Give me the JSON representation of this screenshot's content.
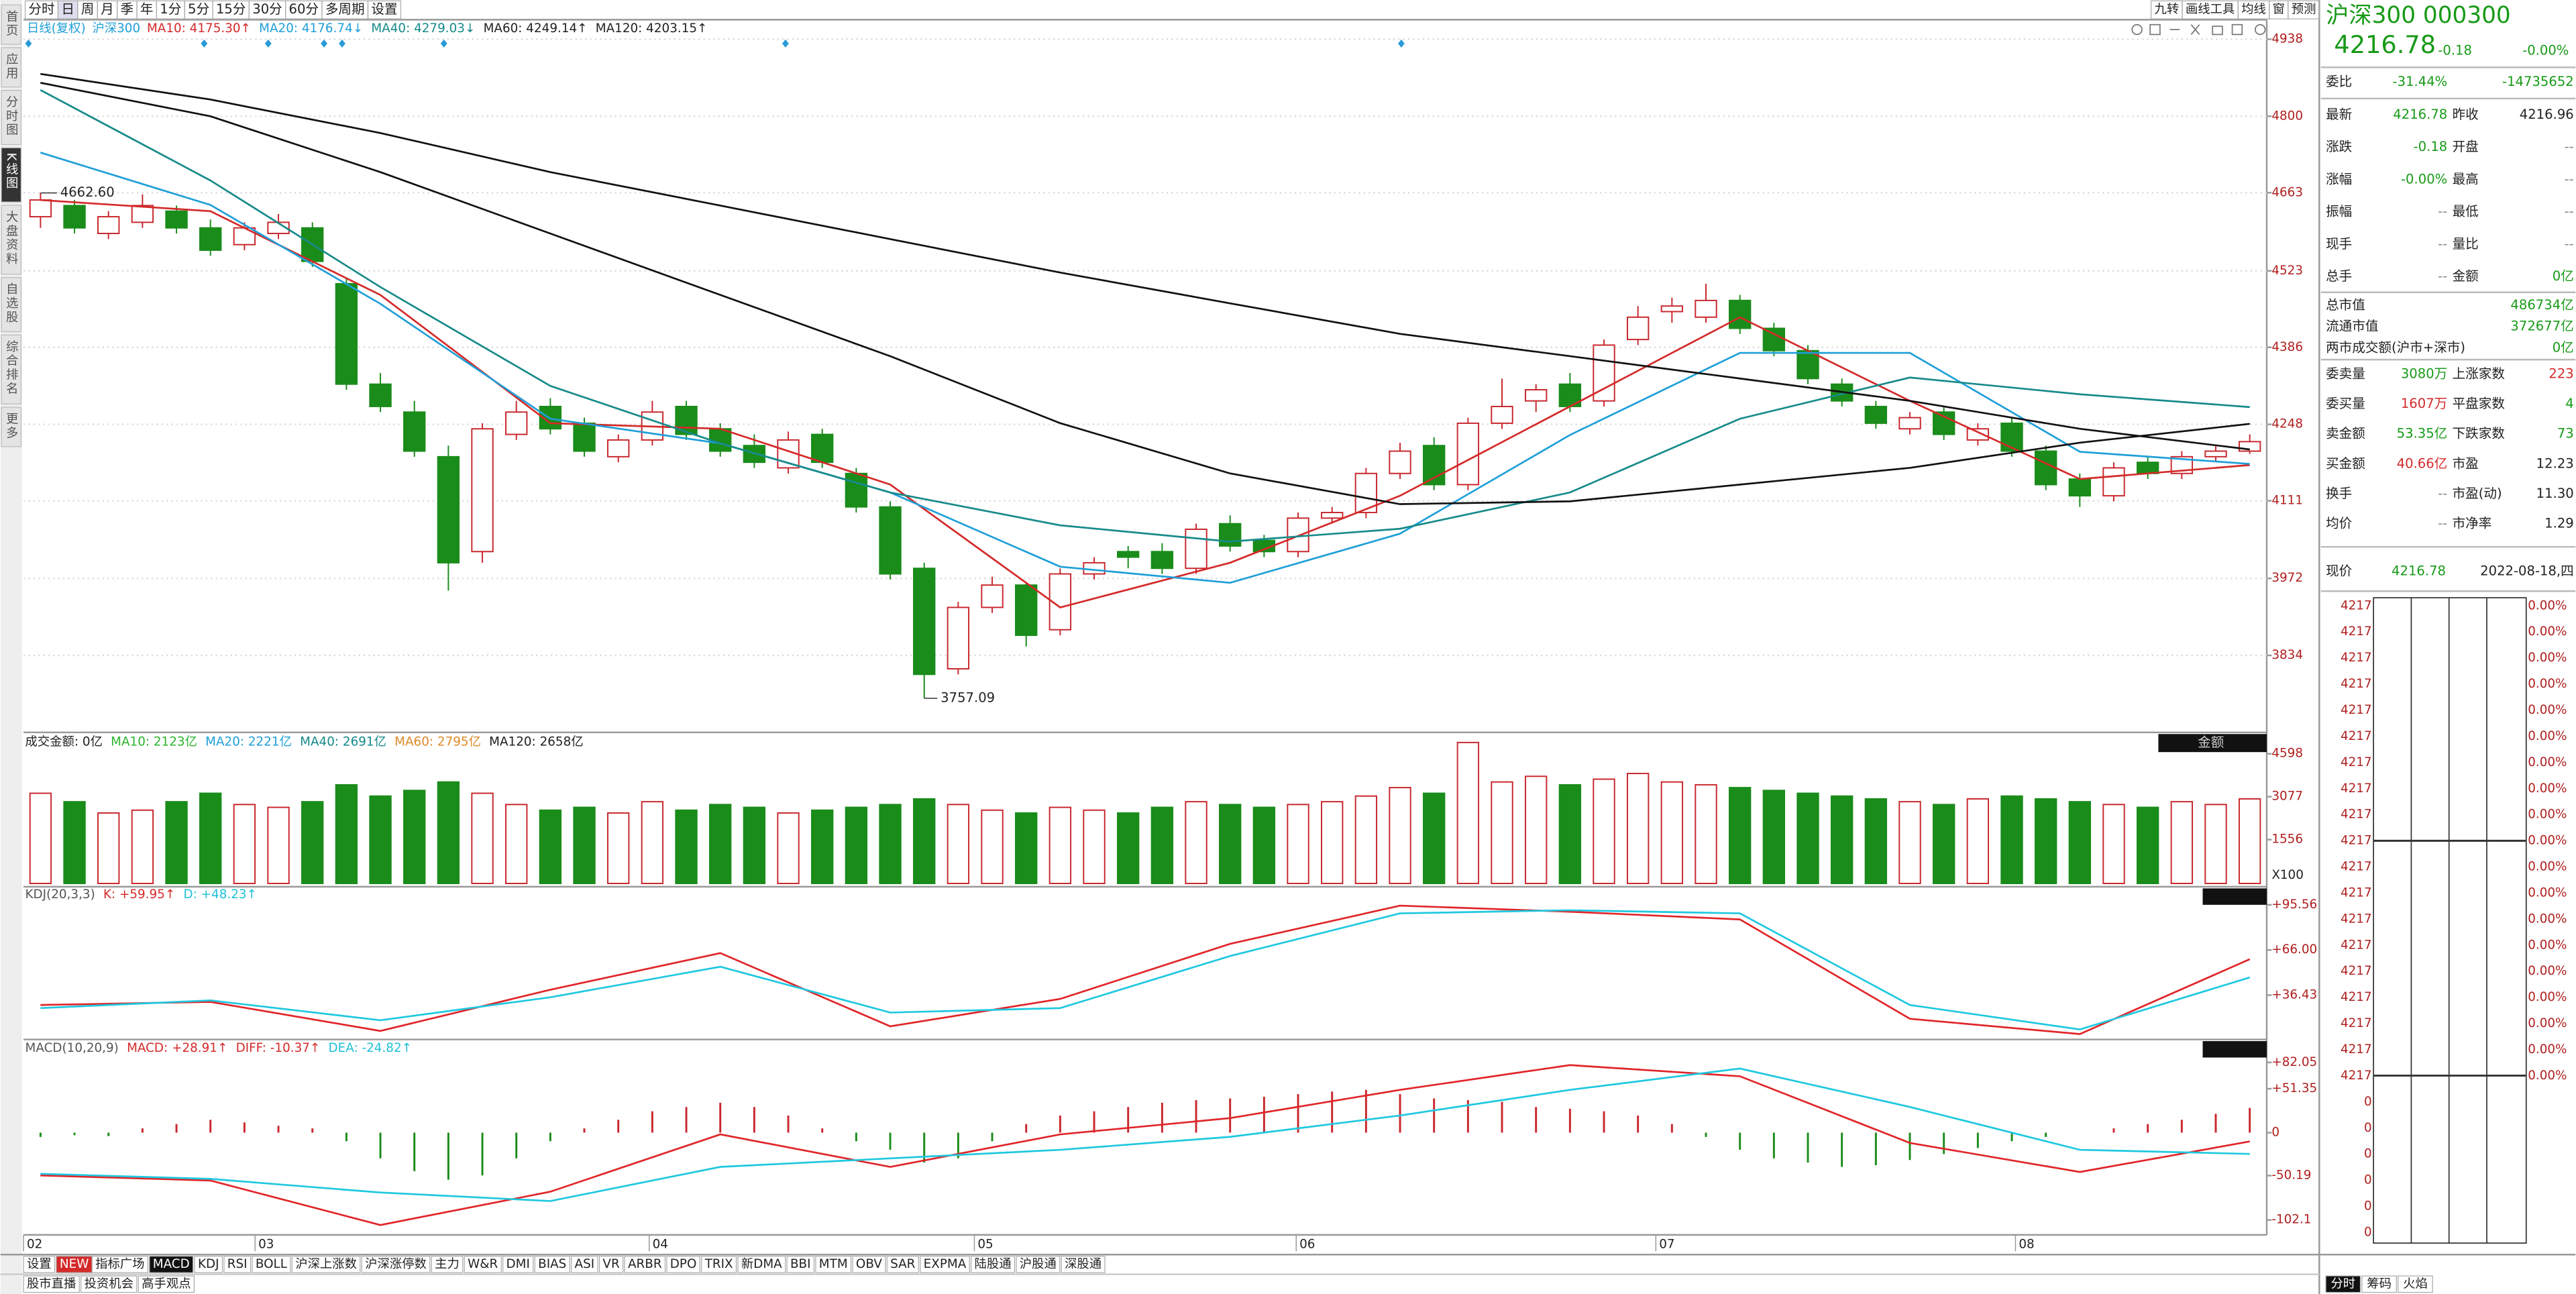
{
  "toolbar": {
    "left": [
      "分时",
      "日",
      "周",
      "月",
      "季",
      "年",
      "1分",
      "5分",
      "15分",
      "30分",
      "60分",
      "多周期",
      "设置"
    ],
    "right": [
      "九转",
      "画线工具",
      "均线",
      "窗",
      "预测"
    ]
  },
  "sidebar": [
    "首页",
    "应用",
    "分时图",
    "K线图",
    "大盘资料",
    "自选股",
    "综合排名",
    "更多"
  ],
  "kline": {
    "mode": "日线(复权)",
    "name": "沪深300",
    "legend": [
      {
        "text": "MA10: 4175.30↑",
        "color": "#d42a2a"
      },
      {
        "text": "MA20: 4176.74↓",
        "color": "#1f9fd8"
      },
      {
        "text": "MA40: 4279.03↓",
        "color": "#178a8a"
      },
      {
        "text": "MA60: 4249.14↑",
        "color": "#222222"
      },
      {
        "text": "MA120: 4203.15↑",
        "color": "#222222"
      }
    ],
    "ylim": [
      3699,
      4973
    ],
    "yticks": [
      4938,
      4800,
      4663,
      4523,
      4386,
      4248,
      4111,
      3972,
      3834
    ],
    "grid": true,
    "up_color": "#c8272d",
    "down_color": "#1a8c1a",
    "open": [
      4620,
      4640,
      4590,
      4610,
      4630,
      4600,
      4570,
      4590,
      4600,
      4500,
      4320,
      4270,
      4190,
      4020,
      4230,
      4280,
      4250,
      4190,
      4220,
      4280,
      4240,
      4210,
      4170,
      4230,
      4160,
      4100,
      3990,
      3810,
      3920,
      3960,
      3880,
      3980,
      4020,
      4020,
      3990,
      4070,
      4040,
      4020,
      4080,
      4090,
      4160,
      4210,
      4140,
      4250,
      4290,
      4320,
      4290,
      4400,
      4450,
      4440,
      4470,
      4420,
      4380,
      4320,
      4280,
      4240,
      4270,
      4220,
      4250,
      4200,
      4150,
      4120,
      4180,
      4160,
      4190,
      4200
    ],
    "high": [
      4662.6,
      4650,
      4630,
      4660,
      4640,
      4615,
      4610,
      4625,
      4610,
      4510,
      4340,
      4290,
      4210,
      4250,
      4290,
      4295,
      4260,
      4230,
      4290,
      4290,
      4250,
      4230,
      4235,
      4240,
      4170,
      4110,
      4000,
      3930,
      3975,
      3965,
      3990,
      4010,
      4030,
      4035,
      4070,
      4085,
      4050,
      4090,
      4100,
      4170,
      4215,
      4225,
      4260,
      4330,
      4320,
      4340,
      4400,
      4460,
      4475,
      4500,
      4480,
      4430,
      4390,
      4330,
      4290,
      4270,
      4280,
      4250,
      4260,
      4210,
      4160,
      4180,
      4190,
      4200,
      4210,
      4230
    ],
    "low": [
      4600,
      4590,
      4580,
      4600,
      4590,
      4550,
      4560,
      4580,
      4530,
      4310,
      4270,
      4190,
      3950,
      4000,
      4220,
      4230,
      4190,
      4180,
      4210,
      4220,
      4190,
      4170,
      4160,
      4170,
      4090,
      3970,
      3757.09,
      3800,
      3910,
      3850,
      3870,
      3970,
      3990,
      3980,
      3980,
      4020,
      4010,
      4010,
      4070,
      4080,
      4150,
      4130,
      4130,
      4240,
      4270,
      4270,
      4280,
      4390,
      4430,
      4430,
      4410,
      4370,
      4320,
      4280,
      4240,
      4230,
      4220,
      4210,
      4190,
      4130,
      4100,
      4110,
      4150,
      4150,
      4180,
      4195
    ],
    "close": [
      4650,
      4600,
      4620,
      4640,
      4600,
      4560,
      4600,
      4610,
      4540,
      4320,
      4280,
      4200,
      4000,
      4240,
      4270,
      4240,
      4200,
      4220,
      4270,
      4230,
      4200,
      4180,
      4220,
      4180,
      4100,
      3980,
      3800,
      3920,
      3960,
      3870,
      3980,
      4000,
      4010,
      3990,
      4060,
      4030,
      4020,
      4080,
      4090,
      4160,
      4200,
      4140,
      4250,
      4280,
      4310,
      4280,
      4390,
      4440,
      4460,
      4470,
      4420,
      4380,
      4330,
      4290,
      4250,
      4260,
      4230,
      4240,
      4200,
      4140,
      4120,
      4170,
      4160,
      4190,
      4200,
      4217
    ],
    "max_label": "4662.60",
    "min_label": "3757.09",
    "ma": [
      {
        "name": "MA10",
        "color": "#d42a2a",
        "values": [
          4650,
          4630,
          4480,
          4250,
          4240,
          4140,
          3920,
          4000,
          4120,
          4280,
          4440,
          4290,
          4150,
          4175
        ]
      },
      {
        "name": "MA20",
        "color": "#1f9fd8",
        "values": [
          4735,
          4641,
          4464,
          4258,
          4214,
          4126,
          3993,
          3964,
          4052,
          4229,
          4376,
          4376,
          4199,
          4177
        ]
      },
      {
        "name": "MA40",
        "color": "#178a8a",
        "values": [
          4847,
          4685,
          4494,
          4317,
          4214,
          4126,
          4067,
          4038,
          4061,
          4126,
          4258,
          4332,
          4302,
          4279
        ]
      },
      {
        "name": "MA60",
        "color": "#111111",
        "values": [
          4860,
          4800,
          4700,
          4590,
          4480,
          4370,
          4250,
          4160,
          4105,
          4110,
          4140,
          4170,
          4215,
          4249
        ]
      },
      {
        "name": "MA120",
        "color": "#111111",
        "values": [
          4876,
          4830,
          4770,
          4700,
          4640,
          4580,
          4520,
          4465,
          4410,
          4370,
          4330,
          4290,
          4240,
          4203
        ]
      }
    ],
    "x_labels": [
      "02",
      "03",
      "04",
      "05",
      "06",
      "07",
      "08"
    ]
  },
  "volume": {
    "legend": [
      {
        "text": "成交金额: 0亿",
        "color": "#222222"
      },
      {
        "text": "MA10: 2123亿",
        "color": "#2bb52b"
      },
      {
        "text": "MA20: 2221亿",
        "color": "#1f9fd8"
      },
      {
        "text": "MA40: 2691亿",
        "color": "#178a8a"
      },
      {
        "text": "MA60: 2795亿",
        "color": "#e08a2a"
      },
      {
        "text": "MA120: 2658亿",
        "color": "#222222"
      }
    ],
    "button": "金额",
    "unit": "X100",
    "ylim": [
      0,
      5300
    ],
    "yticks": [
      4598,
      3077,
      1556
    ],
    "values": [
      3200,
      2900,
      2500,
      2600,
      2900,
      3200,
      2800,
      2700,
      2900,
      3500,
      3100,
      3300,
      3600,
      3200,
      2800,
      2600,
      2700,
      2500,
      2900,
      2600,
      2800,
      2700,
      2500,
      2600,
      2700,
      2800,
      3000,
      2800,
      2600,
      2500,
      2700,
      2600,
      2500,
      2700,
      2900,
      2800,
      2700,
      2800,
      2900,
      3100,
      3400,
      3200,
      5000,
      3600,
      3800,
      3500,
      3700,
      3900,
      3600,
      3500,
      3400,
      3300,
      3200,
      3100,
      3000,
      2900,
      2800,
      3000,
      3100,
      3000,
      2900,
      2800,
      2700,
      2900,
      2800,
      3000
    ]
  },
  "kdj": {
    "legend": [
      {
        "text": "KDJ(20,3,3)",
        "color": "#555555"
      },
      {
        "text": "K: +59.95↑",
        "color": "#d42a2a"
      },
      {
        "text": "D: +48.23↑",
        "color": "#1fc0d8"
      }
    ],
    "ylim": [
      8.5,
      106.3
    ],
    "yticks": [
      {
        "value": 95.56,
        "label": "+95.56"
      },
      {
        "value": 66,
        "label": "+66.00"
      },
      {
        "value": 36.43,
        "label": "+36.43"
      }
    ],
    "series": [
      {
        "name": "K",
        "color": "#e0262a",
        "values": [
          30,
          32,
          13,
          40,
          64,
          16,
          34,
          70,
          95,
          91,
          86,
          21,
          11,
          60
        ]
      },
      {
        "name": "D",
        "color": "#1fc8e0",
        "values": [
          28,
          33,
          20,
          35,
          55,
          25,
          28,
          62,
          90,
          92,
          90,
          30,
          14,
          48
        ]
      }
    ]
  },
  "macd": {
    "legend": [
      {
        "text": "MACD(10,20,9)",
        "color": "#555555"
      },
      {
        "text": "MACD: +28.91↑",
        "color": "#d42a2a"
      },
      {
        "text": "DIFF: -10.37↑",
        "color": "#d42a2a"
      },
      {
        "text": "DEA: -24.82↑",
        "color": "#1fc0d8"
      }
    ],
    "ylim": [
      -119.5,
      107
    ],
    "yticks": [
      {
        "value": 82.05,
        "label": "+82.05"
      },
      {
        "value": 51.35,
        "label": "+51.35"
      },
      0,
      -50.19,
      -102.1
    ],
    "histogram": [
      -5,
      -3,
      -4,
      5,
      10,
      15,
      12,
      8,
      5,
      -10,
      -30,
      -45,
      -55,
      -50,
      -30,
      -10,
      5,
      15,
      25,
      30,
      35,
      30,
      20,
      5,
      -10,
      -20,
      -35,
      -30,
      -10,
      10,
      20,
      25,
      30,
      35,
      38,
      40,
      42,
      45,
      48,
      50,
      45,
      40,
      38,
      36,
      30,
      28,
      25,
      20,
      10,
      -5,
      -20,
      -30,
      -35,
      -40,
      -38,
      -32,
      -25,
      -18,
      -10,
      -5,
      0,
      5,
      10,
      15,
      22,
      28.91
    ],
    "series": [
      {
        "name": "DIFF",
        "color": "#e0262a",
        "values": [
          -50,
          -56,
          -108,
          -69,
          -2,
          -40,
          -2,
          17,
          50,
          79,
          66,
          -12,
          -46,
          -10.37
        ]
      },
      {
        "name": "DEA",
        "color": "#1fc8e0",
        "values": [
          -48,
          -54,
          -70,
          -80,
          -40,
          -30,
          -20,
          -5,
          20,
          50,
          75,
          30,
          -20,
          -24.82
        ]
      }
    ]
  },
  "tabs": [
    "设置",
    "NEW",
    "指标广场",
    "MACD",
    "KDJ",
    "RSI",
    "BOLL",
    "沪深上涨数",
    "沪深涨停数",
    "主力",
    "W&R",
    "DMI",
    "BIAS",
    "ASI",
    "VR",
    "ARBR",
    "DPO",
    "TRIX",
    "新DMA",
    "BBI",
    "MTM",
    "OBV",
    "SAR",
    "EXPMA",
    "陆股通",
    "沪股通",
    "深股通"
  ],
  "bottom_links": [
    "股市直播",
    "投资机会",
    "高手观点"
  ],
  "quote": {
    "title": "沪深300 000300",
    "price": "4216.78",
    "change": "-0.18",
    "pct": "-0.00%",
    "weibi": [
      "委比",
      "-31.44%",
      "-14735652"
    ],
    "rows": [
      {
        "cells": [
          "最新",
          "4216.78",
          "昨收",
          "4216.96"
        ],
        "colors": [
          "#179a17",
          "#222222"
        ]
      },
      {
        "cells": [
          "涨跌",
          "-0.18",
          "开盘",
          "--"
        ],
        "colors": [
          "#179a17",
          "#888888"
        ]
      },
      {
        "cells": [
          "涨幅",
          "-0.00%",
          "最高",
          "--"
        ],
        "colors": [
          "#179a17",
          "#888888"
        ]
      },
      {
        "cells": [
          "振幅",
          "--",
          "最低",
          "--"
        ],
        "colors": [
          "#888888",
          "#888888"
        ]
      },
      {
        "cells": [
          "现手",
          "--",
          "量比",
          "--"
        ],
        "colors": [
          "#888888",
          "#888888"
        ]
      },
      {
        "cells": [
          "总手",
          "--",
          "金额",
          "0亿"
        ],
        "colors": [
          "#888888",
          "#179a17"
        ]
      }
    ],
    "caps": [
      [
        "总市值",
        "486734亿"
      ],
      [
        "流通市值",
        "372677亿"
      ],
      [
        "两市成交额(沪市+深市)",
        "0亿"
      ]
    ],
    "rows2": [
      {
        "cells": [
          "委卖量",
          "3080万",
          "上涨家数",
          "223"
        ],
        "colors": [
          "#179a17",
          "#d42a2a"
        ]
      },
      {
        "cells": [
          "委买量",
          "1607万",
          "平盘家数",
          "4"
        ],
        "colors": [
          "#d42a2a",
          "#179a17"
        ]
      },
      {
        "cells": [
          "卖金额",
          "53.35亿",
          "下跌家数",
          "73"
        ],
        "colors": [
          "#179a17",
          "#179a17"
        ]
      },
      {
        "cells": [
          "买金额",
          "40.66亿",
          "市盈",
          "12.23"
        ],
        "colors": [
          "#d42a2a",
          "#222222"
        ]
      },
      {
        "cells": [
          "换手",
          "--",
          "市盈(动)",
          "11.30"
        ],
        "colors": [
          "#888888",
          "#222222"
        ]
      },
      {
        "cells": [
          "均价",
          "--",
          "市净率",
          "1.29"
        ],
        "colors": [
          "#888888",
          "#222222"
        ]
      }
    ],
    "now": [
      "现价",
      "4216.78",
      "2022-08-18,四"
    ]
  },
  "minute": {
    "prices": [
      "4217",
      "4217",
      "4217",
      "4217",
      "4217",
      "4217",
      "4217",
      "4217",
      "4217",
      "4217",
      "4217",
      "4217",
      "4217",
      "4217",
      "4217",
      "4217",
      "4217",
      "4217",
      "4217",
      "0",
      "0",
      "0",
      "0",
      "0",
      "0"
    ],
    "pcts": [
      "0.00%",
      "0.00%",
      "0.00%",
      "0.00%",
      "0.00%",
      "0.00%",
      "0.00%",
      "0.00%",
      "0.00%",
      "0.00%",
      "0.00%",
      "0.00%",
      "0.00%",
      "0.00%",
      "0.00%",
      "0.00%",
      "0.00%",
      "0.00%",
      "0.00%"
    ],
    "tabs": [
      "分时",
      "筹码",
      "火焰"
    ]
  }
}
